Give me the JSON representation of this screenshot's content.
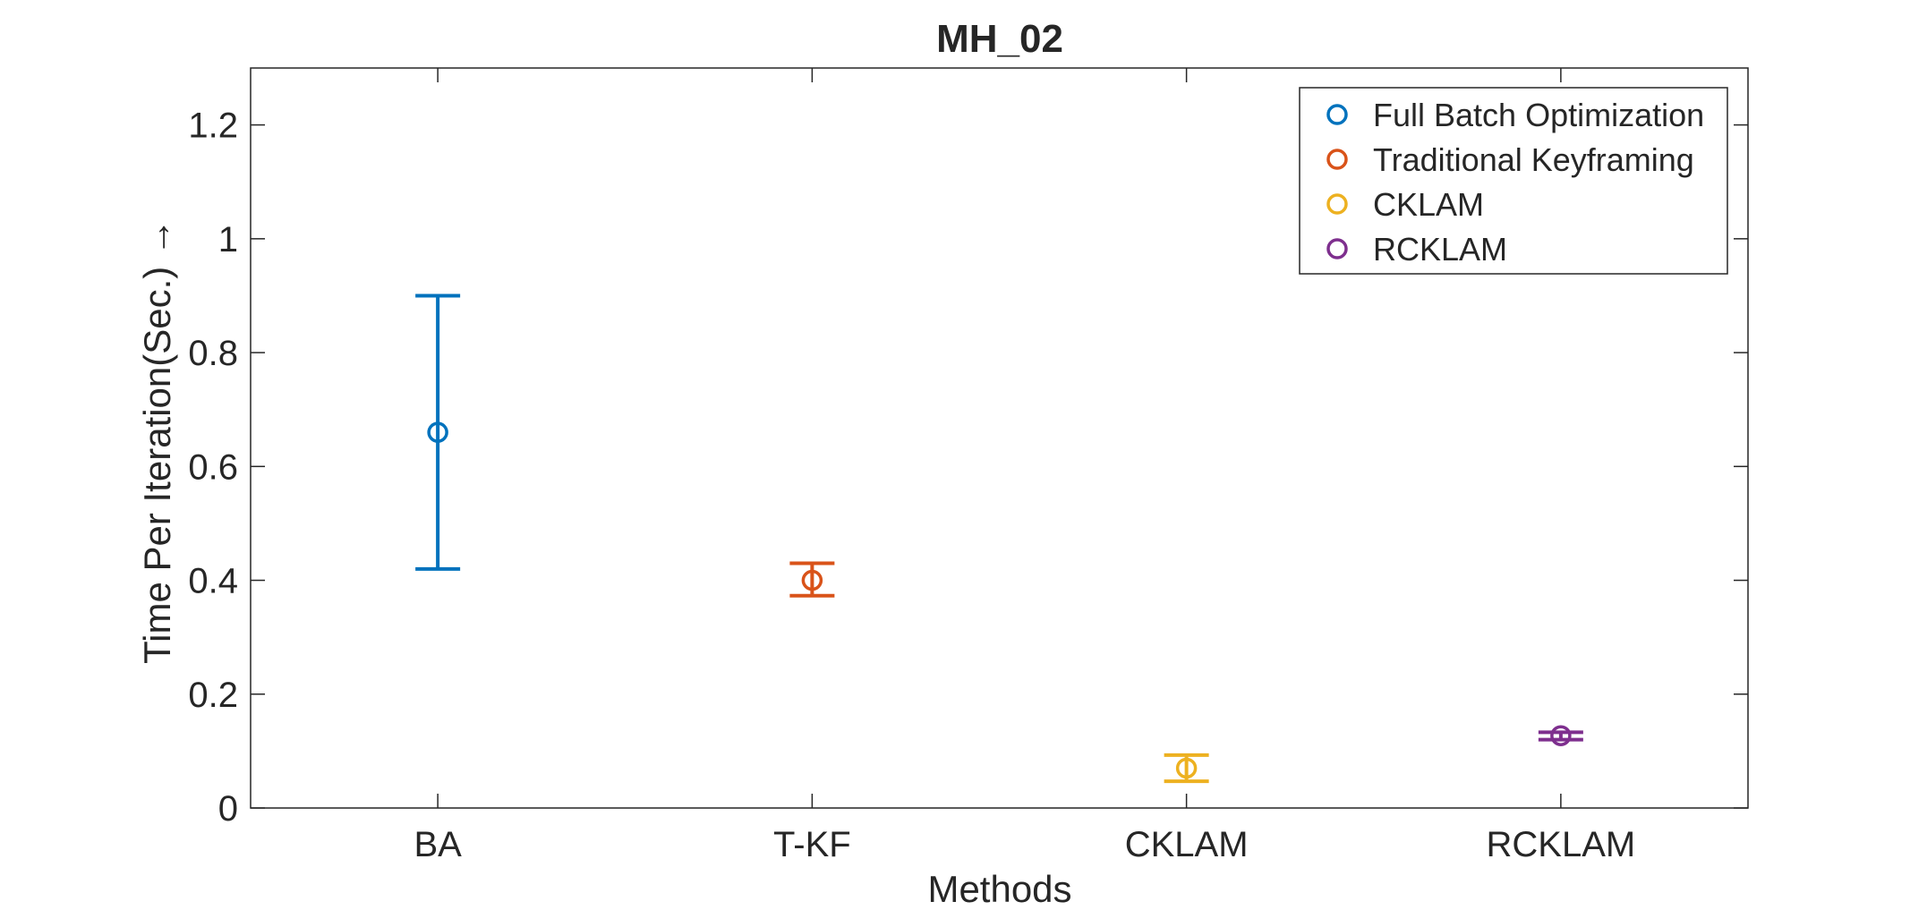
{
  "chart_data": {
    "type": "scatter",
    "title": "MH_02",
    "xlabel": "Methods",
    "ylabel": "Time Per Iteration(Sec.) →",
    "categories": [
      "BA",
      "T-KF",
      "CKLAM",
      "RCKLAM"
    ],
    "ylim": [
      0,
      1.3
    ],
    "yticks": [
      "0",
      "0.2",
      "0.4",
      "0.6",
      "0.8",
      "1",
      "1.2"
    ],
    "grid": true,
    "legend_position": "top-right",
    "series": [
      {
        "name": "Full Batch Optimization",
        "category": "BA",
        "value": 0.66,
        "lower": 0.42,
        "upper": 0.9,
        "color": "#0072BD"
      },
      {
        "name": "Traditional Keyframing",
        "category": "T-KF",
        "value": 0.4,
        "lower": 0.373,
        "upper": 0.43,
        "color": "#D95319"
      },
      {
        "name": "CKLAM",
        "category": "CKLAM",
        "value": 0.07,
        "lower": 0.047,
        "upper": 0.093,
        "color": "#EDB120"
      },
      {
        "name": "RCKLAM",
        "category": "RCKLAM",
        "value": 0.127,
        "lower": 0.12,
        "upper": 0.133,
        "color": "#7E2F8E"
      }
    ]
  }
}
